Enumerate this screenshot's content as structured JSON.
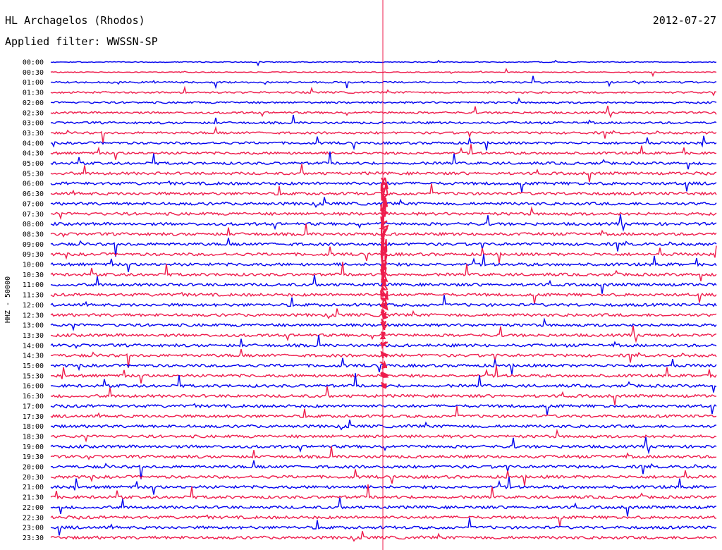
{
  "header": {
    "station": "HL Archagelos (Rhodos)",
    "date": "2012-07-27",
    "filter": "Applied filter: WWSSN-SP"
  },
  "chart_data": {
    "type": "line",
    "chart_kind": "helicorder seismogram",
    "ylabel": "HHZ - 50000",
    "tick_labels": [
      "00:00",
      "00:30",
      "01:00",
      "01:30",
      "02:00",
      "02:30",
      "03:00",
      "03:30",
      "04:00",
      "04:30",
      "05:00",
      "05:30",
      "06:00",
      "06:30",
      "07:00",
      "07:30",
      "08:00",
      "08:30",
      "09:00",
      "09:30",
      "10:00",
      "10:30",
      "11:00",
      "11:30",
      "12:00",
      "12:30",
      "13:00",
      "13:30",
      "14:00",
      "14:30",
      "15:00",
      "15:30",
      "16:00",
      "16:30",
      "17:00",
      "17:30",
      "18:00",
      "18:30",
      "19:00",
      "19:30",
      "20:00",
      "20:30",
      "21:00",
      "21:30",
      "22:00",
      "22:30",
      "23:00",
      "23:30"
    ],
    "trace_colors": [
      "#0000ee",
      "#ee1c4c"
    ],
    "event_marker_color": "#ee1c4c",
    "grid": false
  }
}
